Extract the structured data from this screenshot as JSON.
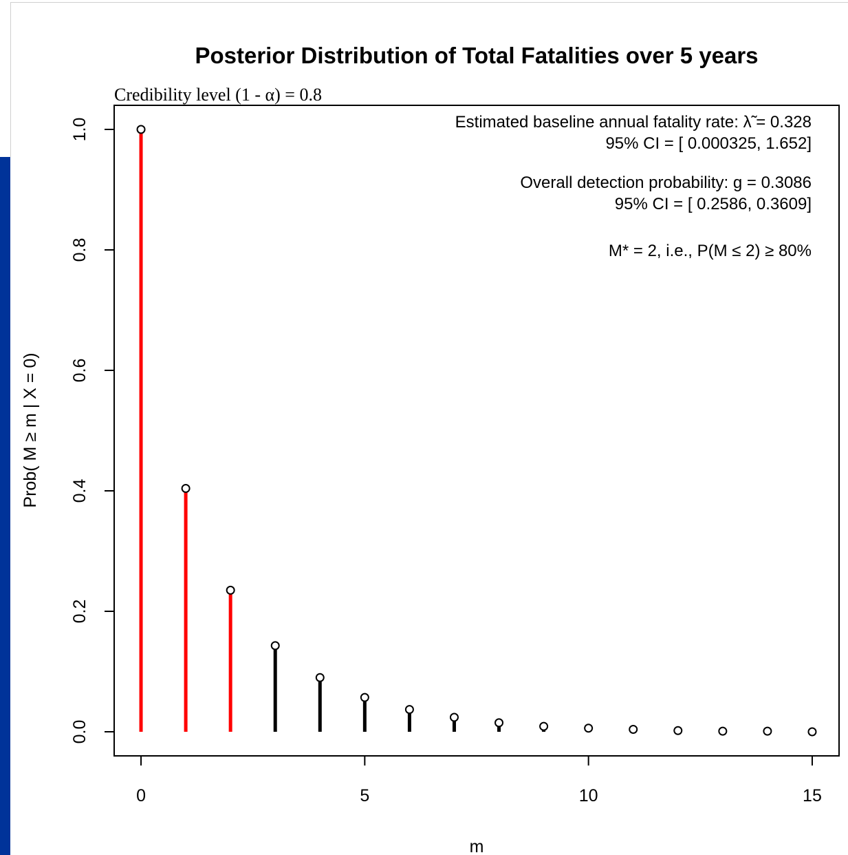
{
  "chart_data": {
    "type": "bar",
    "title": "Posterior Distribution of Total Fatalities over 5 years",
    "subtitle": "Credibility level (1 - α) =  0.8",
    "xlabel": "m",
    "ylabel": "Prob( M ≥ m | X = 0)",
    "xlim": [
      -0.6,
      15.6
    ],
    "ylim": [
      -0.04,
      1.04
    ],
    "x_ticks": [
      0,
      5,
      10,
      15
    ],
    "y_ticks": [
      0.0,
      0.2,
      0.4,
      0.6,
      0.8,
      1.0
    ],
    "x_tick_labels": [
      "0",
      "5",
      "10",
      "15"
    ],
    "y_tick_labels": [
      "0.0",
      "0.2",
      "0.4",
      "0.6",
      "0.8",
      "1.0"
    ],
    "grid": false,
    "legend": "none",
    "x": [
      0,
      1,
      2,
      3,
      4,
      5,
      6,
      7,
      8,
      9,
      10,
      11,
      12,
      13,
      14,
      15
    ],
    "values": [
      1.0,
      0.404,
      0.235,
      0.143,
      0.09,
      0.057,
      0.037,
      0.024,
      0.015,
      0.009,
      0.006,
      0.004,
      0.002,
      0.001,
      0.001,
      0.0
    ],
    "highlight_through_m": 2,
    "colors": {
      "highlight": "#ff0000",
      "rest": "#000000",
      "marker": "#000000"
    },
    "annotations": [
      "Estimated baseline annual fatality rate: λ̃ = 0.328",
      "95% CI = [ 0.000325, 1.652]",
      "Overall detection probability: g = 0.3086",
      "95% CI = [ 0.2586, 0.3609]",
      "M* = 2, i.e., P(M ≤ 2) ≥ 80%"
    ]
  }
}
